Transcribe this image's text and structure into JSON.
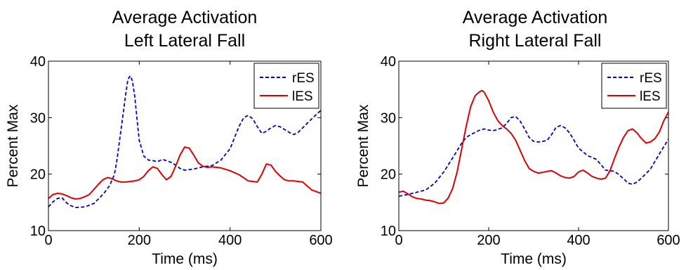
{
  "chart_data": [
    {
      "type": "line",
      "title": "Average Activation",
      "subtitle": "Left Lateral Fall",
      "xlabel": "Time (ms)",
      "ylabel": "Percent Max",
      "xlim": [
        0,
        600
      ],
      "ylim": [
        10,
        40
      ],
      "xticks": [
        0,
        200,
        400,
        600
      ],
      "yticks": [
        10,
        20,
        30,
        40
      ],
      "legend": "top-right",
      "grid": false,
      "series": [
        {
          "name": "rES",
          "color": "#0000cc",
          "style": "dashed",
          "x": [
            0,
            10,
            20,
            30,
            40,
            50,
            60,
            80,
            100,
            115,
            125,
            135,
            145,
            150,
            160,
            170,
            175,
            180,
            185,
            190,
            195,
            200,
            210,
            220,
            230,
            240,
            250,
            260,
            270,
            280,
            290,
            300,
            320,
            340,
            360,
            380,
            400,
            410,
            420,
            430,
            440,
            450,
            460,
            470,
            480,
            490,
            500,
            510,
            520,
            530,
            540,
            550,
            560,
            580,
            600
          ],
          "values": [
            14.2,
            15.1,
            15.7,
            15.8,
            14.9,
            14.4,
            14.1,
            14.2,
            14.8,
            16.0,
            16.9,
            18.0,
            19.9,
            22.0,
            28.0,
            34.0,
            36.8,
            37.4,
            36.5,
            33.8,
            29.8,
            26.0,
            23.2,
            22.5,
            22.4,
            22.2,
            22.6,
            22.4,
            22.1,
            21.6,
            21.0,
            20.7,
            20.9,
            21.3,
            21.5,
            22.5,
            24.5,
            26.5,
            28.5,
            30.0,
            30.4,
            29.8,
            28.4,
            27.2,
            27.6,
            28.2,
            28.6,
            28.4,
            27.9,
            27.4,
            27.0,
            27.4,
            28.2,
            29.8,
            31.3
          ]
        },
        {
          "name": "lES",
          "color": "#dd0000",
          "style": "solid",
          "x": [
            0,
            10,
            20,
            30,
            40,
            50,
            60,
            70,
            80,
            90,
            100,
            110,
            120,
            130,
            140,
            150,
            160,
            170,
            180,
            190,
            200,
            210,
            220,
            230,
            240,
            250,
            260,
            270,
            280,
            290,
            300,
            310,
            320,
            330,
            340,
            350,
            360,
            380,
            400,
            420,
            440,
            460,
            470,
            480,
            490,
            500,
            510,
            520,
            530,
            540,
            560,
            580,
            600
          ],
          "values": [
            15.7,
            16.4,
            16.6,
            16.5,
            16.2,
            15.8,
            15.6,
            15.7,
            16.0,
            16.4,
            17.3,
            18.2,
            19.0,
            19.4,
            19.2,
            18.8,
            18.6,
            18.6,
            18.7,
            18.8,
            19.0,
            19.6,
            20.6,
            21.3,
            21.0,
            19.9,
            19.0,
            19.6,
            21.4,
            23.4,
            24.8,
            24.6,
            23.4,
            22.0,
            21.4,
            21.2,
            21.3,
            21.1,
            20.6,
            19.9,
            18.8,
            18.6,
            20.0,
            21.8,
            21.6,
            20.5,
            19.7,
            19.0,
            18.8,
            18.8,
            18.6,
            17.2,
            16.6
          ]
        }
      ]
    },
    {
      "type": "line",
      "title": "Average Activation",
      "subtitle": "Right Lateral Fall",
      "xlabel": "Time (ms)",
      "ylabel": "Percent Max",
      "xlim": [
        0,
        600
      ],
      "ylim": [
        10,
        40
      ],
      "xticks": [
        0,
        200,
        400,
        600
      ],
      "yticks": [
        10,
        20,
        30,
        40
      ],
      "legend": "top-right",
      "grid": false,
      "series": [
        {
          "name": "rES",
          "color": "#0000cc",
          "style": "dashed",
          "x": [
            0,
            20,
            40,
            60,
            80,
            100,
            120,
            140,
            150,
            160,
            170,
            180,
            190,
            200,
            210,
            220,
            230,
            240,
            250,
            260,
            270,
            280,
            290,
            300,
            310,
            320,
            330,
            340,
            350,
            360,
            370,
            380,
            390,
            400,
            420,
            440,
            460,
            480,
            490,
            500,
            510,
            520,
            530,
            540,
            560,
            580,
            600
          ],
          "values": [
            16.1,
            16.4,
            16.8,
            17.2,
            18.4,
            20.4,
            22.9,
            25.5,
            26.5,
            27.0,
            27.4,
            27.8,
            28.0,
            27.8,
            27.7,
            27.9,
            28.2,
            29.0,
            30.0,
            30.2,
            29.4,
            28.0,
            26.5,
            25.8,
            25.7,
            25.8,
            26.0,
            27.0,
            28.3,
            28.6,
            28.2,
            27.3,
            26.0,
            24.6,
            23.3,
            22.6,
            20.7,
            20.5,
            19.9,
            19.2,
            18.4,
            18.2,
            18.6,
            19.3,
            20.9,
            23.6,
            26.2
          ]
        },
        {
          "name": "lES",
          "color": "#dd0000",
          "style": "solid",
          "x": [
            0,
            10,
            20,
            30,
            40,
            50,
            60,
            70,
            80,
            90,
            100,
            110,
            120,
            130,
            140,
            150,
            160,
            170,
            180,
            185,
            190,
            200,
            210,
            220,
            230,
            240,
            250,
            260,
            270,
            280,
            290,
            300,
            310,
            320,
            330,
            340,
            350,
            360,
            370,
            380,
            390,
            400,
            410,
            420,
            430,
            440,
            450,
            460,
            470,
            480,
            490,
            500,
            510,
            520,
            530,
            540,
            550,
            560,
            570,
            580,
            590,
            600
          ],
          "values": [
            16.8,
            17.0,
            16.5,
            16.0,
            15.7,
            15.6,
            15.4,
            15.3,
            15.1,
            14.8,
            14.9,
            15.8,
            17.5,
            20.5,
            24.5,
            28.5,
            32.0,
            33.9,
            34.6,
            34.8,
            34.5,
            33.0,
            31.0,
            29.5,
            28.6,
            28.0,
            27.2,
            26.0,
            24.2,
            22.4,
            21.0,
            20.5,
            20.2,
            20.3,
            20.5,
            20.6,
            20.2,
            19.7,
            19.4,
            19.3,
            19.6,
            20.4,
            20.7,
            20.2,
            19.6,
            19.3,
            19.1,
            19.3,
            20.6,
            22.8,
            24.8,
            26.5,
            27.7,
            28.0,
            27.3,
            26.3,
            25.5,
            25.7,
            26.3,
            27.5,
            29.5,
            31.0
          ]
        }
      ]
    }
  ]
}
